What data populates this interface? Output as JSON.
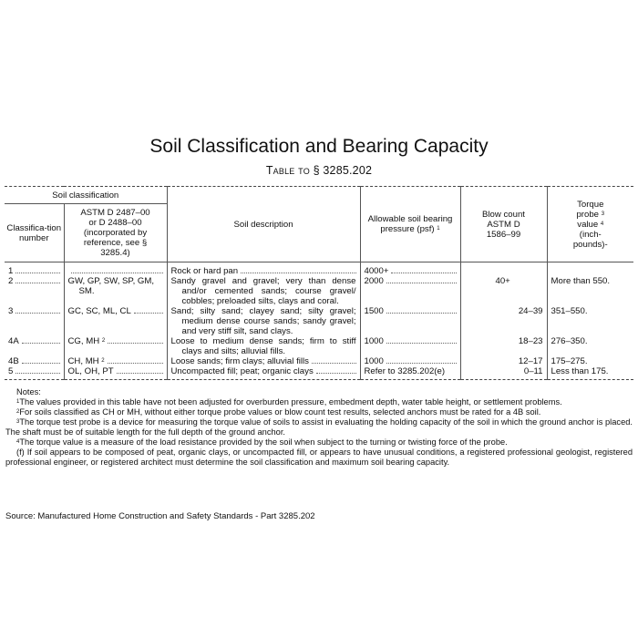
{
  "title": "Soil Classification and Bearing Capacity",
  "subtitle": "Table to § 3285.202",
  "headers": {
    "group": "Soil classification",
    "class_number": "Classifica-tion number",
    "astm": "ASTM D 2487–00 or D 2488–00 (incorporated by reference, see § 3285.4)",
    "description": "Soil description",
    "pressure": "Allowable soil bearing pressure (psf)",
    "pressure_note": "1",
    "blow": "Blow count ASTM D 1586–99",
    "torque": "Torque probe",
    "torque_note1": "3",
    "torque_value": "value",
    "torque_note2": "4",
    "torque_unit": "(inch-pounds)-"
  },
  "rows": [
    {
      "num": "1",
      "astm": "",
      "astm_note": "",
      "desc": "Rock or hard pan",
      "pressure": "4000+",
      "blow": "",
      "torque": ""
    },
    {
      "num": "2",
      "astm": "GW, GP, SW, SP, GM, SM.",
      "astm_note": "",
      "desc": "Sandy gravel and gravel; very than dense and/or cemented sands; course gravel/ cobbles; preloaded silts, clays and coral.",
      "pressure": "2000",
      "blow": "40+",
      "torque": "More than 550."
    },
    {
      "num": "3",
      "astm": "GC, SC, ML, CL",
      "astm_note": "",
      "desc": "Sand; silty sand; clayey sand; silty gravel; medium dense course sands; sandy gravel; and very stiff silt, sand clays.",
      "pressure": "1500",
      "blow": "24–39",
      "torque": "351–550."
    },
    {
      "num": "4A",
      "astm": "CG, MH",
      "astm_note": "2",
      "desc": "Loose to medium dense sands; firm to stiff clays and silts; alluvial fills.",
      "pressure": "1000",
      "blow": "18–23",
      "torque": "276–350."
    },
    {
      "num": "4B",
      "astm": "CH, MH",
      "astm_note": "2",
      "desc": "Loose sands; firm clays; alluvial fills",
      "pressure": "1000",
      "blow": "12–17",
      "torque": "175–275."
    },
    {
      "num": "5",
      "astm": "OL, OH, PT",
      "astm_note": "",
      "desc": "Uncompacted fill; peat; organic clays",
      "pressure": "Refer to 3285.202(e)",
      "blow": "0–11",
      "torque": "Less than 175."
    }
  ],
  "notes": {
    "heading": "Notes:",
    "n1_mark": "1",
    "n1": "The values provided in this table have not been adjusted for overburden pressure, embedment depth, water table height, or settlement problems.",
    "n2_mark": "2",
    "n2": "For soils classified as CH or MH, without either torque probe values or blow count test results, selected anchors must be rated for a 4B soil.",
    "n3_mark": "3",
    "n3": "The torque test probe is a device for measuring the torque value of soils to assist in evaluating the holding capacity of the soil in which the ground anchor is placed. The shaft must be of suitable length for the full depth of the ground anchor.",
    "n4_mark": "4",
    "n4": "The torque value is a measure of the load resistance provided by the soil when subject to the turning or twisting force of the probe.",
    "f": "(f) If soil appears to be composed of peat, organic clays, or uncompacted fill, or appears to have unusual conditions, a registered professional geologist, registered professional engineer, or registered architect must determine the soil classification and maximum soil bearing capacity."
  },
  "source": "Source: Manufactured Home Construction and Safety Standards - Part 3285.202"
}
